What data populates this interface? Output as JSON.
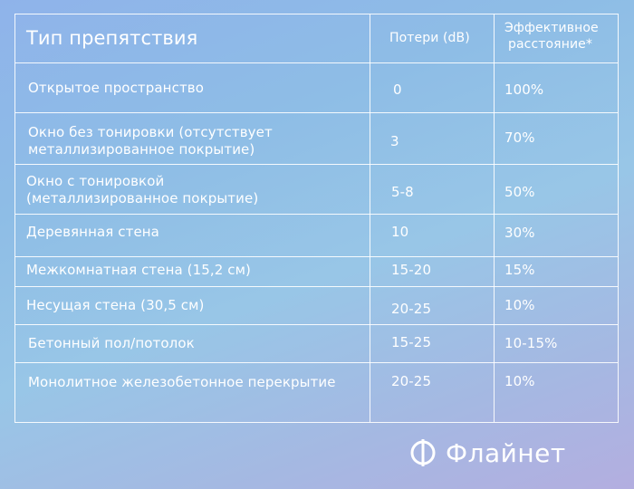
{
  "table": {
    "headers": {
      "obstacle": "Тип препятствия",
      "loss": "Потери (dB)",
      "distance_line1": "Эффективное",
      "distance_line2": "расстояние*"
    },
    "rows": [
      {
        "obstacle_line1": "Открытое пространство",
        "obstacle_line2": "",
        "loss": "0",
        "distance": "100%"
      },
      {
        "obstacle_line1": "Окно без тонировки (отсутствует",
        "obstacle_line2": "металлизированное покрытие)",
        "loss": "3",
        "distance": "70%"
      },
      {
        "obstacle_line1": "Окно с тонировкой",
        "obstacle_line2": "(металлизированное покрытие)",
        "loss": "5-8",
        "distance": "50%"
      },
      {
        "obstacle_line1": "Деревянная стена",
        "obstacle_line2": "",
        "loss": "10",
        "distance": "30%"
      },
      {
        "obstacle_line1": "Межкомнатная стена (15,2 см)",
        "obstacle_line2": "",
        "loss": "15-20",
        "distance": "15%"
      },
      {
        "obstacle_line1": "Несущая стена (30,5 см)",
        "obstacle_line2": "",
        "loss": "20-25",
        "distance": "10%"
      },
      {
        "obstacle_line1": "Бетонный пол/потолок",
        "obstacle_line2": "",
        "loss": "15-25",
        "distance": "10-15%"
      },
      {
        "obstacle_line1": "Монолитное железобетонное перекрытие",
        "obstacle_line2": "",
        "loss": "20-25",
        "distance": "10%"
      }
    ]
  },
  "brand": {
    "name": "Флайнет",
    "icon": "flynet-logo-icon"
  }
}
